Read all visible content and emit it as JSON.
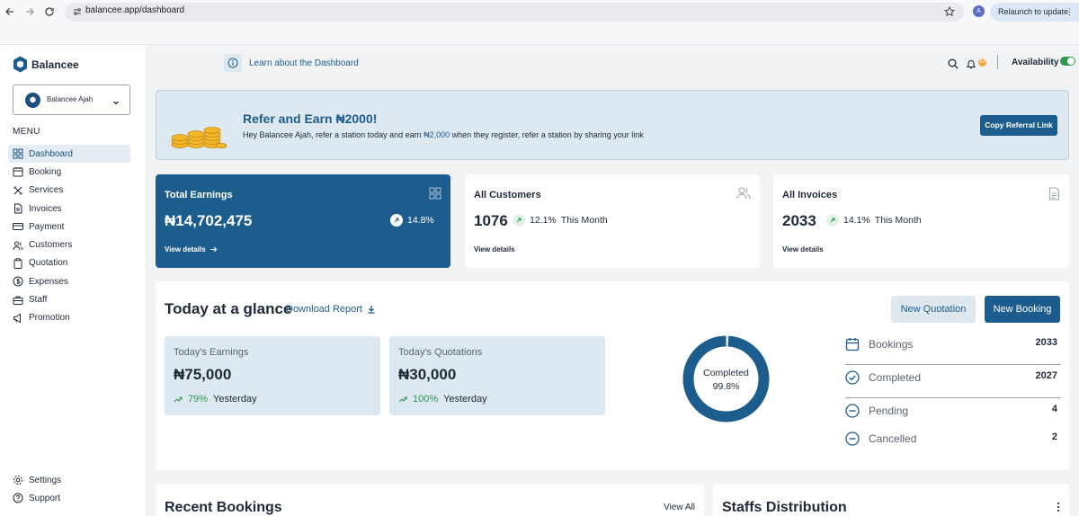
{
  "browser": {
    "url": "balancee.app/dashboard",
    "profile_initial": "A",
    "relaunch_label": "Relaunch to update"
  },
  "brand": {
    "name": "Balancee",
    "color": "#1d5d8d"
  },
  "account": {
    "name": "Balancee Ajah"
  },
  "sidebar": {
    "menu_title": "MENU",
    "items": [
      {
        "label": "Dashboard",
        "icon": "grid-icon",
        "active": true
      },
      {
        "label": "Booking",
        "icon": "calendar-icon"
      },
      {
        "label": "Services",
        "icon": "tools-icon"
      },
      {
        "label": "Invoices",
        "icon": "document-icon"
      },
      {
        "label": "Payment",
        "icon": "card-icon"
      },
      {
        "label": "Customers",
        "icon": "users-icon"
      },
      {
        "label": "Quotation",
        "icon": "clipboard-icon"
      },
      {
        "label": "Expenses",
        "icon": "dollar-icon"
      },
      {
        "label": "Staff",
        "icon": "briefcase-icon"
      },
      {
        "label": "Promotion",
        "icon": "megaphone-icon"
      }
    ],
    "bottom": [
      {
        "label": "Settings",
        "icon": "gear-icon"
      },
      {
        "label": "Support",
        "icon": "help-icon"
      }
    ]
  },
  "topbar": {
    "learn_label": "Learn about the Dashboard",
    "notification_count": "20",
    "availability_label": "Availability",
    "availability_on": true
  },
  "referral": {
    "title": "Refer and Earn ₦2000!",
    "text_before": "Hey Balancee Ajah, refer a station today and earn ",
    "amount": "₦2,000",
    "text_after": " when they register, refer a station by sharing your link",
    "button_label": "Copy Referral Link"
  },
  "cards": {
    "earnings": {
      "title": "Total Earnings",
      "value": "₦14,702,475",
      "trend": "14.8%",
      "link": "View details"
    },
    "customers": {
      "title": "All Customers",
      "value": "1076",
      "trend": "12.1%",
      "period": "This Month",
      "link": "View details"
    },
    "invoices": {
      "title": "All Invoices",
      "value": "2033",
      "trend": "14.1%",
      "period": "This Month",
      "link": "View details"
    }
  },
  "glance": {
    "title": "Today at a glance",
    "download_label": "Download Report",
    "new_quotation_label": "New Quotation",
    "new_booking_label": "New Booking",
    "earnings": {
      "label": "Today's Earnings",
      "value": "₦75,000",
      "pct": "79%",
      "period": "Yesterday"
    },
    "quotations": {
      "label": "Today's Quotations",
      "value": "₦30,000",
      "pct": "100%",
      "period": "Yesterday"
    },
    "donut": {
      "label": "Completed",
      "value": "99.8%",
      "fraction": 0.998,
      "color": "#1d5d8d"
    },
    "stats": [
      {
        "label": "Bookings",
        "value": "2033",
        "icon": "calendar-icon"
      },
      {
        "label": "Completed",
        "value": "2027",
        "icon": "check-circle-icon"
      },
      {
        "label": "Pending",
        "value": "4",
        "icon": "minus-circle-icon"
      },
      {
        "label": "Cancelled",
        "value": "2",
        "icon": "minus-circle-icon"
      }
    ]
  },
  "recent_bookings": {
    "title": "Recent Bookings",
    "view_all_label": "View All"
  },
  "staffs_distribution": {
    "title": "Staffs Distribution"
  }
}
